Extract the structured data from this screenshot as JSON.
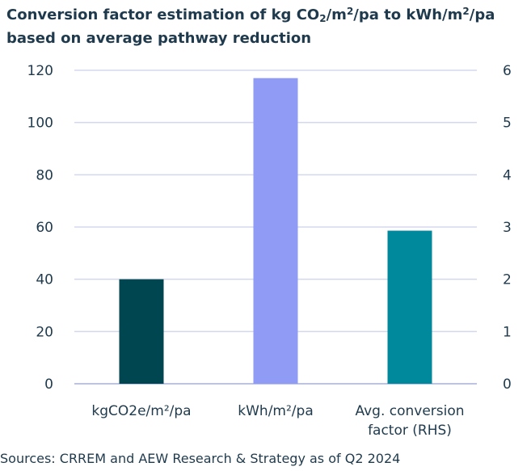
{
  "title": {
    "part1": "Conversion factor estimation of kg CO",
    "sub": "2",
    "part2": "/m",
    "sup1": "2",
    "part3": "/pa to kWh/m",
    "sup2": "2",
    "part4": "/pa based on average pathway reduction"
  },
  "source": "Sources: CRREM and AEW Research & Strategy as of Q2 2024",
  "chart_data": {
    "type": "bar",
    "categories": [
      [
        "kgCO2e/m²/pa"
      ],
      [
        "kWh/m²/pa"
      ],
      [
        "Avg. conversion",
        "factor (RHS)"
      ]
    ],
    "values": [
      40,
      117,
      2.93
    ],
    "axis": [
      "left",
      "left",
      "right"
    ],
    "colors": [
      "#004651",
      "#8f9bf4",
      "#00899c"
    ],
    "ylim_left": [
      0,
      120
    ],
    "yticks_left": [
      0,
      20,
      40,
      60,
      80,
      100,
      120
    ],
    "ylim_right": [
      0,
      6
    ],
    "yticks_right": [
      0,
      1,
      2,
      3,
      4,
      5,
      6
    ],
    "grid": true,
    "legend": "none"
  }
}
